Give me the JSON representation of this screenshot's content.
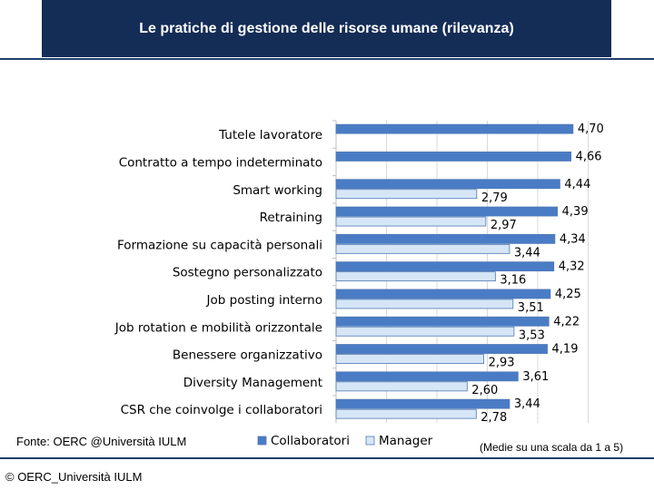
{
  "header": {
    "title": "Le pratiche di gestione delle risorse umane (rilevanza)"
  },
  "footer": {
    "source": "Fonte: OERC @Università IULM",
    "scale_note": "(Medie su una scala da 1 a 5)",
    "copyright": "© OERC_Università IULM"
  },
  "colors": {
    "title_bg": "#142d57",
    "collaboratori": "#4a7cc6",
    "manager": "#d6e6f6",
    "bar_border": "#4f78b4"
  },
  "chart_data": {
    "type": "bar",
    "orientation": "horizontal",
    "categories": [
      "Tutele lavoratore",
      "Contratto a tempo indeterminato",
      "Smart working",
      "Retraining",
      "Formazione su capacità personali",
      "Sostegno personalizzato",
      "Job posting interno",
      "Job rotation e mobilità orizzontale",
      "Benessere organizzativo",
      "Diversity Management",
      "CSR che coinvolge i collaboratori"
    ],
    "series": [
      {
        "name": "Collaboratori",
        "values": [
          4.7,
          4.66,
          4.44,
          4.39,
          4.34,
          4.32,
          4.25,
          4.22,
          4.19,
          3.61,
          3.44
        ],
        "labels": [
          "4,70",
          "4,66",
          "4,44",
          "4,39",
          "4,34",
          "4,32",
          "4,25",
          "4,22",
          "4,19",
          "3,61",
          "3,44"
        ]
      },
      {
        "name": "Manager",
        "values": [
          null,
          null,
          2.79,
          2.97,
          3.44,
          3.16,
          3.51,
          3.53,
          2.93,
          2.6,
          2.78
        ],
        "labels": [
          "",
          "",
          "2,79",
          "2,97",
          "3,44",
          "3,16",
          "3,51",
          "3,53",
          "2,93",
          "2,60",
          "2,78"
        ]
      }
    ],
    "legend": [
      "Collaboratori",
      "Manager"
    ],
    "legend_position": "bottom",
    "xlim": [
      0,
      5
    ],
    "grid": true
  }
}
